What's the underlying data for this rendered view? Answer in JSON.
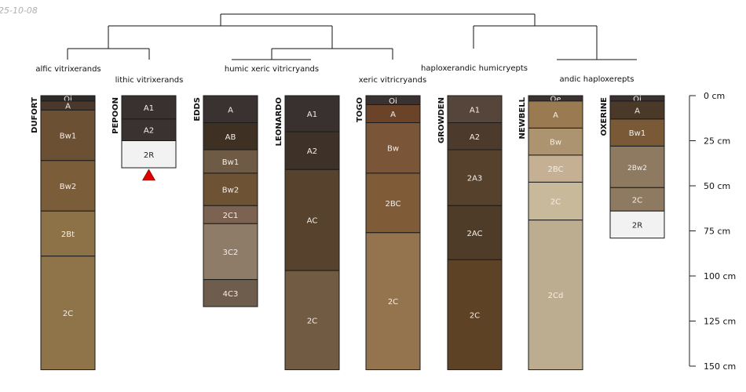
{
  "date_stamp": "25-10-08",
  "tree": {
    "taxa": [
      {
        "id": "alfic",
        "label": "alfic vitrixerands"
      },
      {
        "id": "lithic",
        "label": "lithic vitrixerands"
      },
      {
        "id": "humic",
        "label": "humic xeric vitricryands"
      },
      {
        "id": "xeric",
        "label": "xeric vitricryands"
      },
      {
        "id": "haplo",
        "label": "haploxerandic humicryepts"
      },
      {
        "id": "andic",
        "label": "andic haploxerepts"
      }
    ]
  },
  "depth_axis": {
    "max_cm": 150,
    "ticks": [
      {
        "value": 0,
        "label": "0 cm"
      },
      {
        "value": 25,
        "label": "25 cm"
      },
      {
        "value": 50,
        "label": "50 cm"
      },
      {
        "value": 75,
        "label": "75 cm"
      },
      {
        "value": 100,
        "label": "100 cm"
      },
      {
        "value": 125,
        "label": "125 cm"
      },
      {
        "value": 150,
        "label": "150 cm"
      }
    ]
  },
  "profiles": [
    {
      "name": "DUFORT",
      "horizons": [
        {
          "label": "Oi",
          "top": 0,
          "bottom": 3,
          "color": "#2f2b28"
        },
        {
          "label": "A",
          "top": 3,
          "bottom": 8,
          "color": "#4a382c"
        },
        {
          "label": "Bw1",
          "top": 8,
          "bottom": 36,
          "color": "#6c5033"
        },
        {
          "label": "Bw2",
          "top": 36,
          "bottom": 64,
          "color": "#7c5d3a"
        },
        {
          "label": "2Bt",
          "top": 64,
          "bottom": 89,
          "color": "#8d7248"
        },
        {
          "label": "2C",
          "top": 89,
          "bottom": 152,
          "color": "#8f7449"
        }
      ]
    },
    {
      "name": "PEPOON",
      "horizons": [
        {
          "label": "A1",
          "top": 0,
          "bottom": 13,
          "color": "#383130"
        },
        {
          "label": "A2",
          "top": 13,
          "bottom": 25,
          "color": "#3a3230"
        },
        {
          "label": "2R",
          "top": 25,
          "bottom": 40,
          "color": "#f2f2f2",
          "text_color": "#222222"
        }
      ],
      "marker": "truncated"
    },
    {
      "name": "EDDS",
      "horizons": [
        {
          "label": "A",
          "top": 0,
          "bottom": 15,
          "color": "#3a3230"
        },
        {
          "label": "AB",
          "top": 15,
          "bottom": 30,
          "color": "#3f3024"
        },
        {
          "label": "Bw1",
          "top": 30,
          "bottom": 43,
          "color": "#6f5a45"
        },
        {
          "label": "Bw2",
          "top": 43,
          "bottom": 61,
          "color": "#6e5234"
        },
        {
          "label": "2C1",
          "top": 61,
          "bottom": 71,
          "color": "#7c6250"
        },
        {
          "label": "3C2",
          "top": 71,
          "bottom": 102,
          "color": "#8e7b68"
        },
        {
          "label": "4C3",
          "top": 102,
          "bottom": 117,
          "color": "#6e5d4d"
        }
      ]
    },
    {
      "name": "LEONARDO",
      "horizons": [
        {
          "label": "A1",
          "top": 0,
          "bottom": 20,
          "color": "#383130"
        },
        {
          "label": "A2",
          "top": 20,
          "bottom": 41,
          "color": "#3e3128"
        },
        {
          "label": "AC",
          "top": 41,
          "bottom": 97,
          "color": "#56422d"
        },
        {
          "label": "2C",
          "top": 97,
          "bottom": 152,
          "color": "#715b43"
        }
      ]
    },
    {
      "name": "TOGO",
      "horizons": [
        {
          "label": "Oi",
          "top": 0,
          "bottom": 5,
          "color": "#3a3230"
        },
        {
          "label": "A",
          "top": 5,
          "bottom": 15,
          "color": "#6a4328"
        },
        {
          "label": "Bw",
          "top": 15,
          "bottom": 43,
          "color": "#7a5538"
        },
        {
          "label": "2BC",
          "top": 43,
          "bottom": 76,
          "color": "#7f5c37"
        },
        {
          "label": "2C",
          "top": 76,
          "bottom": 152,
          "color": "#94744e"
        }
      ]
    },
    {
      "name": "GROWDEN",
      "horizons": [
        {
          "label": "A1",
          "top": 0,
          "bottom": 15,
          "color": "#56453a"
        },
        {
          "label": "A2",
          "top": 15,
          "bottom": 30,
          "color": "#4c3a2c"
        },
        {
          "label": "2A3",
          "top": 30,
          "bottom": 61,
          "color": "#56412c"
        },
        {
          "label": "2AC",
          "top": 61,
          "bottom": 91,
          "color": "#4f3c28"
        },
        {
          "label": "2C",
          "top": 91,
          "bottom": 152,
          "color": "#5e4226"
        }
      ]
    },
    {
      "name": "NEWBELL",
      "horizons": [
        {
          "label": "Oe",
          "top": 0,
          "bottom": 3,
          "color": "#3a3230"
        },
        {
          "label": "A",
          "top": 3,
          "bottom": 18,
          "color": "#9a7a50"
        },
        {
          "label": "Bw",
          "top": 18,
          "bottom": 33,
          "color": "#ad9470"
        },
        {
          "label": "2BC",
          "top": 33,
          "bottom": 48,
          "color": "#c6b093"
        },
        {
          "label": "2C",
          "top": 48,
          "bottom": 69,
          "color": "#c8b99b"
        },
        {
          "label": "2Cd",
          "top": 69,
          "bottom": 152,
          "color": "#bcad90"
        }
      ]
    },
    {
      "name": "OXERINE",
      "horizons": [
        {
          "label": "Oi",
          "top": 0,
          "bottom": 3,
          "color": "#3a3230"
        },
        {
          "label": "A",
          "top": 3,
          "bottom": 13,
          "color": "#4a3929"
        },
        {
          "label": "Bw1",
          "top": 13,
          "bottom": 28,
          "color": "#7a5a36"
        },
        {
          "label": "2Bw2",
          "top": 28,
          "bottom": 51,
          "color": "#8e7a60"
        },
        {
          "label": "2C",
          "top": 51,
          "bottom": 64,
          "color": "#8e7a60"
        },
        {
          "label": "2R",
          "top": 64,
          "bottom": 79,
          "color": "#f2f2f2",
          "text_color": "#222222"
        }
      ]
    }
  ]
}
